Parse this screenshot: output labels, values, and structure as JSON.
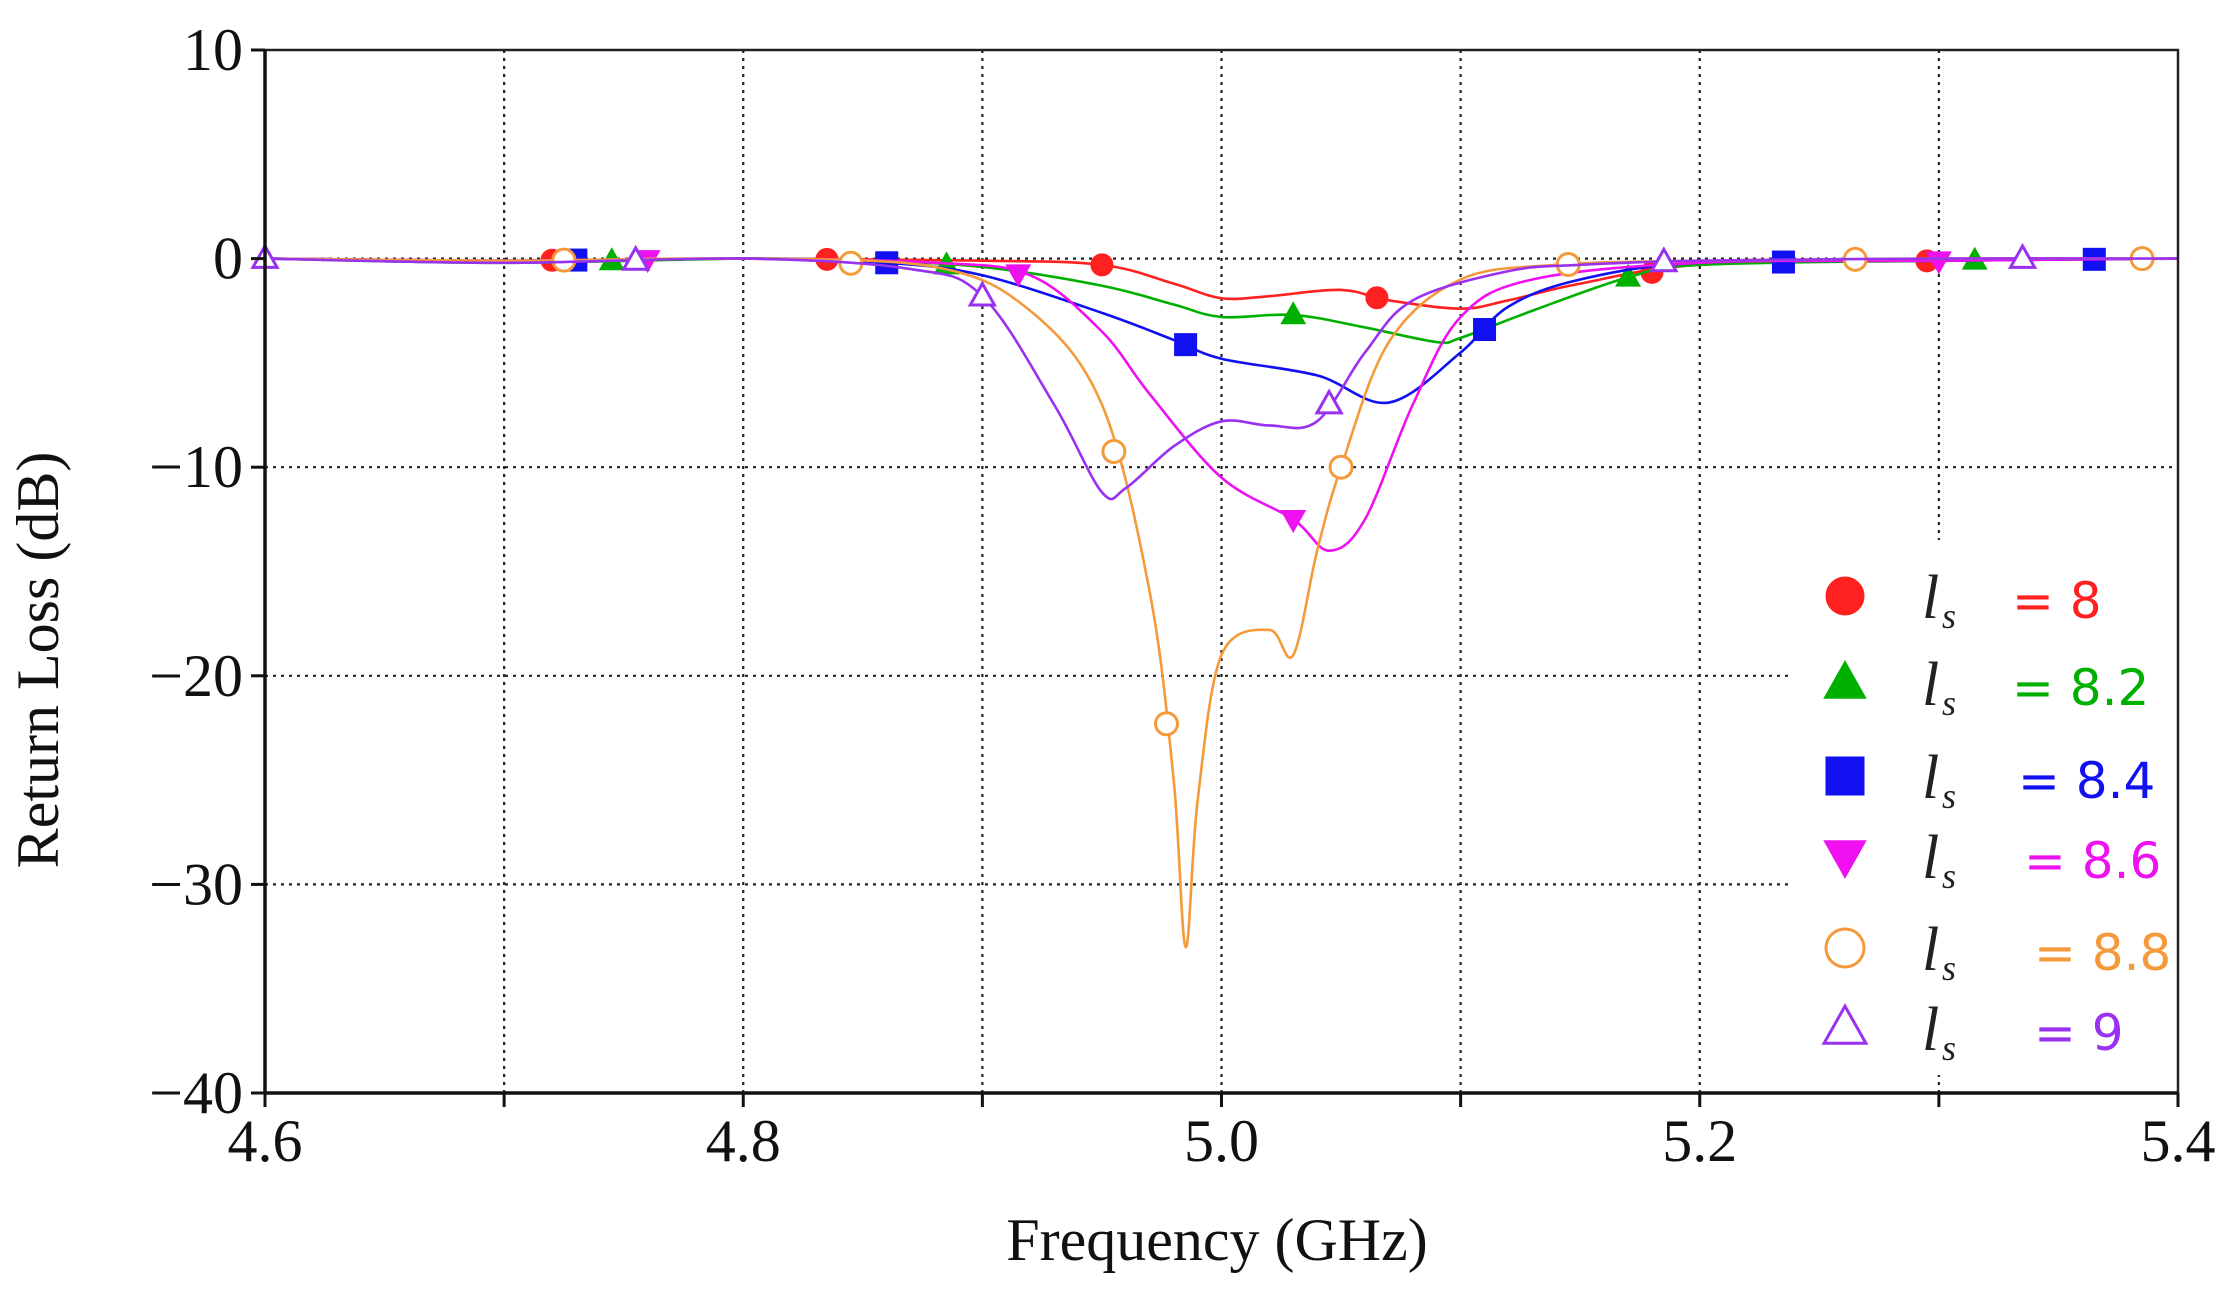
{
  "chart_data": {
    "type": "line",
    "title": "",
    "xlabel": "Frequency (GHz)",
    "ylabel": "Return Loss (dB)",
    "xlim": [
      4.6,
      5.4
    ],
    "ylim": [
      -40,
      10
    ],
    "xticks": [
      4.6,
      4.7,
      4.8,
      4.9,
      5.0,
      5.1,
      5.2,
      5.3,
      5.4
    ],
    "xtick_labels": [
      "4.6",
      "4.8",
      "5.0",
      "5.2",
      "5.4"
    ],
    "yticks": [
      -40,
      -30,
      -20,
      -10,
      0,
      10
    ],
    "ytick_labels": [
      "−40",
      "−30",
      "−20",
      "−10",
      "0",
      "10"
    ],
    "grid": true,
    "legend_position": "bottom-right",
    "legend_prefix": "l",
    "legend_subscript": "s",
    "series": [
      {
        "name": "= 8",
        "color": "#ff2020",
        "marker": "circle-filled",
        "x": [
          4.6,
          4.7,
          4.8,
          4.9,
          4.95,
          4.98,
          5.0,
          5.02,
          5.05,
          5.07,
          5.1,
          5.12,
          5.15,
          5.2,
          5.3,
          5.4
        ],
        "y": [
          0,
          -0.1,
          0,
          -0.1,
          -0.3,
          -1.2,
          -1.9,
          -1.8,
          -1.5,
          -2.0,
          -2.4,
          -2.0,
          -1.2,
          -0.3,
          -0.1,
          0
        ],
        "marker_x": [
          4.72,
          4.835,
          4.95,
          5.065,
          5.18,
          5.295
        ]
      },
      {
        "name": "= 8.2",
        "color": "#00b000",
        "marker": "triangle-up-filled",
        "x": [
          4.6,
          4.7,
          4.8,
          4.85,
          4.9,
          4.95,
          4.98,
          5.0,
          5.03,
          5.06,
          5.09,
          5.1,
          5.13,
          5.17,
          5.2,
          5.3,
          5.4
        ],
        "y": [
          0,
          -0.2,
          0,
          -0.1,
          -0.4,
          -1.3,
          -2.2,
          -2.8,
          -2.7,
          -3.3,
          -4.0,
          -3.8,
          -2.5,
          -0.9,
          -0.3,
          -0.1,
          0
        ],
        "marker_x": [
          4.745,
          4.885,
          5.03,
          5.17,
          5.315
        ]
      },
      {
        "name": "= 8.4",
        "color": "#1010f0",
        "marker": "square-filled",
        "x": [
          4.6,
          4.7,
          4.8,
          4.86,
          4.9,
          4.95,
          4.98,
          5.0,
          5.04,
          5.07,
          5.1,
          5.12,
          5.15,
          5.2,
          5.3,
          5.4
        ],
        "y": [
          0,
          -0.1,
          0,
          -0.2,
          -0.8,
          -2.6,
          -3.9,
          -4.8,
          -5.6,
          -6.9,
          -4.5,
          -2.3,
          -1.0,
          -0.2,
          -0.1,
          0
        ],
        "marker_x": [
          4.73,
          4.86,
          4.985,
          5.11,
          5.235,
          5.365
        ]
      },
      {
        "name": "= 8.6",
        "color": "#ee10ee",
        "marker": "triangle-down-filled",
        "x": [
          4.6,
          4.7,
          4.8,
          4.88,
          4.92,
          4.95,
          4.97,
          5.0,
          5.03,
          5.045,
          5.06,
          5.08,
          5.1,
          5.13,
          5.2,
          5.3,
          5.4
        ],
        "y": [
          0,
          -0.1,
          0,
          -0.2,
          -0.8,
          -3.5,
          -6.5,
          -10.5,
          -12.5,
          -14.0,
          -12.5,
          -7.0,
          -2.8,
          -1.0,
          -0.2,
          -0.1,
          0
        ],
        "marker_x": [
          4.76,
          4.915,
          5.03,
          5.3
        ]
      },
      {
        "name": "= 8.8",
        "color": "#f59a3a",
        "marker": "circle-open",
        "x": [
          4.6,
          4.7,
          4.8,
          4.88,
          4.92,
          4.95,
          4.97,
          4.98,
          4.985,
          4.99,
          5.0,
          5.02,
          5.03,
          5.04,
          5.05,
          5.07,
          5.1,
          5.14,
          5.2,
          5.3,
          5.4
        ],
        "y": [
          0,
          -0.1,
          0,
          -0.4,
          -2.5,
          -7.0,
          -16.0,
          -25.0,
          -33.0,
          -26.0,
          -19.0,
          -17.8,
          -19.0,
          -14.0,
          -10.0,
          -4.0,
          -1.0,
          -0.3,
          -0.1,
          0,
          0
        ],
        "marker_x": [
          4.725,
          4.845,
          4.955,
          4.977,
          5.05,
          5.145,
          5.265,
          5.385
        ]
      },
      {
        "name": "= 9",
        "color": "#9a30f0",
        "marker": "triangle-up-open",
        "x": [
          4.6,
          4.7,
          4.8,
          4.87,
          4.9,
          4.93,
          4.95,
          4.96,
          4.98,
          5.0,
          5.02,
          5.04,
          5.06,
          5.08,
          5.12,
          5.15,
          5.2,
          5.3,
          5.4
        ],
        "y": [
          0,
          -0.2,
          0,
          -0.5,
          -1.8,
          -7.0,
          -11.2,
          -11.0,
          -9.0,
          -7.8,
          -8.0,
          -7.8,
          -4.5,
          -2.0,
          -0.6,
          -0.3,
          -0.1,
          0,
          0
        ],
        "marker_x": [
          4.6,
          4.755,
          4.9,
          5.045,
          5.185,
          5.335
        ]
      }
    ]
  }
}
